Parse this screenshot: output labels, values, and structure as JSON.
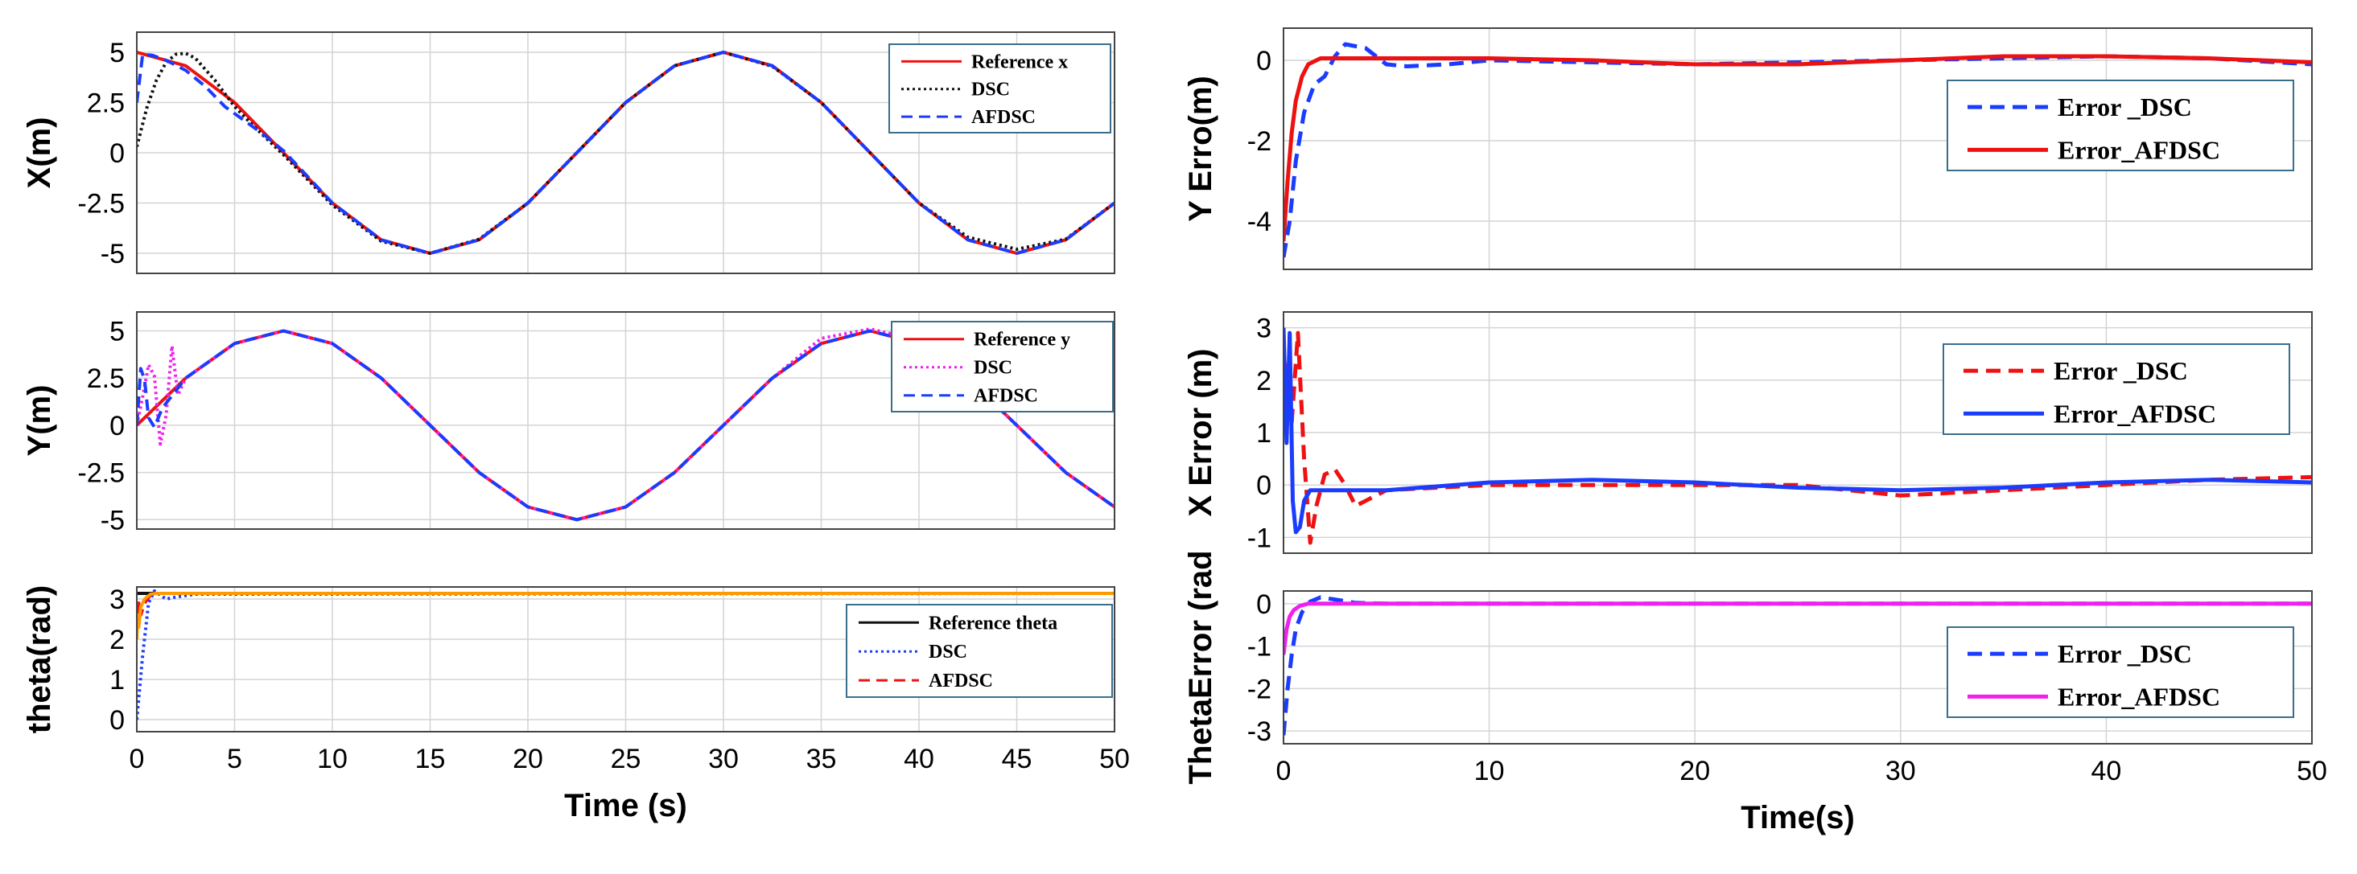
{
  "chart_data": [
    {
      "id": "x_tracking",
      "type": "line",
      "ylabel": "X(m)",
      "xlabel": "",
      "xlim": [
        0,
        50
      ],
      "ylim": [
        -6,
        6
      ],
      "xticks": [
        "0",
        "5",
        "10",
        "15",
        "20",
        "25",
        "30",
        "35",
        "40",
        "45",
        "50"
      ],
      "xtick_labels_shown": false,
      "yticks": [
        5,
        2.5,
        0,
        -2.5,
        -5
      ],
      "ytick_labels": [
        "5",
        "2.5",
        "0",
        "-2.5",
        "-5"
      ],
      "grid": true,
      "legend": "top-right",
      "series": [
        {
          "name": "Reference x",
          "color": "#ee1111",
          "dash": "solid",
          "x": [
            0,
            2.5,
            5,
            7.5,
            10,
            12.5,
            15,
            17.5,
            20,
            22.5,
            25,
            27.5,
            30,
            32.5,
            35,
            37.5,
            40,
            42.5,
            45,
            47.5,
            50
          ],
          "y": [
            5,
            4.33,
            2.5,
            0,
            -2.5,
            -4.33,
            -5,
            -4.33,
            -2.5,
            0,
            2.5,
            4.33,
            5,
            4.33,
            2.5,
            0,
            -2.5,
            -4.33,
            -5,
            -4.33,
            -2.5
          ]
        },
        {
          "name": "DSC",
          "color": "#111111",
          "dash": "dot",
          "x": [
            0,
            0.5,
            1,
            1.5,
            2,
            2.5,
            3,
            4,
            5,
            6,
            7.5,
            10,
            12.5,
            15,
            17.5,
            20,
            22.5,
            25,
            27.5,
            30,
            32.5,
            35,
            37.5,
            40,
            42.5,
            45,
            47.5,
            50
          ],
          "y": [
            0.3,
            2.2,
            3.6,
            4.5,
            4.9,
            4.95,
            4.7,
            3.6,
            2.3,
            1.3,
            -0.1,
            -2.6,
            -4.4,
            -5,
            -4.3,
            -2.5,
            0,
            2.5,
            4.33,
            5,
            4.3,
            2.5,
            0,
            -2.5,
            -4.2,
            -4.8,
            -4.3,
            -2.5
          ]
        },
        {
          "name": "AFDSC",
          "color": "#1a3cff",
          "dash": "dash",
          "x": [
            0,
            0.3,
            0.8,
            1.5,
            2.5,
            3.5,
            4.5,
            5.5,
            6.5,
            7.5,
            10,
            12.5,
            15,
            17.5,
            20,
            22.5,
            25,
            27.5,
            30,
            32.5,
            35,
            37.5,
            40,
            42.5,
            45,
            47.5,
            50
          ],
          "y": [
            2.5,
            4.9,
            4.85,
            4.6,
            4.1,
            3.3,
            2.3,
            1.6,
            0.9,
            0.1,
            -2.5,
            -4.33,
            -5,
            -4.33,
            -2.5,
            0,
            2.5,
            4.33,
            5,
            4.33,
            2.5,
            0,
            -2.5,
            -4.33,
            -5,
            -4.33,
            -2.5
          ]
        }
      ],
      "legend_entries": [
        "Reference x",
        "DSC",
        "AFDSC"
      ]
    },
    {
      "id": "y_tracking",
      "type": "line",
      "ylabel": "Y(m)",
      "xlabel": "",
      "xlim": [
        0,
        50
      ],
      "ylim": [
        -5.5,
        6
      ],
      "xticks": [
        "0",
        "5",
        "10",
        "15",
        "20",
        "25",
        "30",
        "35",
        "40",
        "45",
        "50"
      ],
      "xtick_labels_shown": false,
      "yticks": [
        5,
        2.5,
        0,
        -2.5,
        -5
      ],
      "ytick_labels": [
        "5",
        "2.5",
        "0",
        "-2.5",
        "-5"
      ],
      "grid": true,
      "legend": "top-right",
      "series": [
        {
          "name": "Reference y",
          "color": "#ee1111",
          "dash": "solid",
          "x": [
            0,
            2.5,
            5,
            7.5,
            10,
            12.5,
            15,
            17.5,
            20,
            22.5,
            25,
            27.5,
            30,
            32.5,
            35,
            37.5,
            40,
            42.5,
            45,
            47.5,
            50
          ],
          "y": [
            0,
            2.5,
            4.33,
            5,
            4.33,
            2.5,
            0,
            -2.5,
            -4.33,
            -5,
            -4.33,
            -2.5,
            0,
            2.5,
            4.33,
            5,
            4.33,
            2.5,
            0,
            -2.5,
            -4.33
          ]
        },
        {
          "name": "DSC",
          "color": "#ee22ee",
          "dash": "dot",
          "x": [
            0,
            0.3,
            0.6,
            0.9,
            1.2,
            1.5,
            1.8,
            2.1,
            2.5,
            5,
            7.5,
            10,
            12.5,
            15,
            17.5,
            20,
            22.5,
            25,
            27.5,
            30,
            32.5,
            35,
            37.5,
            40,
            42.5,
            45,
            47.5,
            50
          ],
          "y": [
            0,
            1.5,
            3.2,
            2.6,
            -1.0,
            0.5,
            4.2,
            1.6,
            2.5,
            4.33,
            5,
            4.33,
            2.5,
            0,
            -2.5,
            -4.33,
            -5,
            -4.33,
            -2.5,
            0,
            2.5,
            4.6,
            5.1,
            4.5,
            2.5,
            0,
            -2.5,
            -4.33
          ]
        },
        {
          "name": "AFDSC",
          "color": "#1a3cff",
          "dash": "dash",
          "x": [
            0,
            0.2,
            0.4,
            0.6,
            0.9,
            1.3,
            2.5,
            5,
            7.5,
            10,
            12.5,
            15,
            17.5,
            20,
            22.5,
            25,
            27.5,
            30,
            32.5,
            35,
            37.5,
            40,
            42.5,
            45,
            47.5,
            50
          ],
          "y": [
            0,
            3.0,
            2.4,
            0.4,
            -0.1,
            0.9,
            2.5,
            4.33,
            5,
            4.33,
            2.5,
            0,
            -2.5,
            -4.33,
            -5,
            -4.33,
            -2.5,
            0,
            2.5,
            4.33,
            5,
            4.33,
            2.5,
            0,
            -2.5,
            -4.33
          ]
        }
      ],
      "legend_entries": [
        "Reference y",
        "DSC",
        "AFDSC"
      ]
    },
    {
      "id": "theta_tracking",
      "type": "line",
      "ylabel": "theta(rad)",
      "xlabel": "Time (s)",
      "xlim": [
        0,
        50
      ],
      "ylim": [
        -0.3,
        3.3
      ],
      "xticks": [
        "0",
        "5",
        "10",
        "15",
        "20",
        "25",
        "30",
        "35",
        "40",
        "45",
        "50"
      ],
      "xtick_labels_shown": true,
      "yticks": [
        3,
        2,
        1,
        0
      ],
      "ytick_labels": [
        "3",
        "2",
        "1",
        "0"
      ],
      "grid": true,
      "legend": "right",
      "series": [
        {
          "name": "Reference theta",
          "color": "#111111",
          "dash": "solid",
          "x": [
            0,
            50
          ],
          "y": [
            3.14,
            3.14
          ]
        },
        {
          "name": "DSC",
          "color": "#1a3cff",
          "dash": "dot",
          "x": [
            0,
            0.3,
            0.6,
            0.9,
            1.2,
            1.5,
            2,
            3,
            50
          ],
          "y": [
            0,
            1.6,
            2.9,
            3.2,
            3.1,
            3.0,
            3.05,
            3.12,
            3.14
          ]
        },
        {
          "name": "AFDSC",
          "color": "#ee1111",
          "dash": "dash",
          "x": [
            0,
            0.1,
            0.2,
            0.4,
            0.7,
            1,
            50
          ],
          "y": [
            2.2,
            2.9,
            2.6,
            2.9,
            3.1,
            3.14,
            3.14
          ]
        },
        {
          "name": "",
          "color": "#ff9900",
          "dash": "solid",
          "x": [
            0,
            0.05,
            0.1,
            0.2,
            0.4,
            0.7,
            1,
            50
          ],
          "y": [
            2.0,
            2.6,
            2.3,
            2.8,
            3.0,
            3.12,
            3.14,
            3.14
          ]
        }
      ],
      "legend_entries": [
        "Reference theta",
        "DSC",
        "AFDSC"
      ]
    },
    {
      "id": "y_error",
      "type": "line",
      "ylabel": "Y Erro(m)",
      "xlabel": "",
      "xlim": [
        0,
        50
      ],
      "ylim": [
        -5.2,
        0.8
      ],
      "xticks": [
        "0",
        "10",
        "20",
        "30",
        "40",
        "50"
      ],
      "xtick_labels_shown": false,
      "yticks": [
        0,
        -2,
        -4
      ],
      "ytick_labels": [
        "0",
        "-2",
        "-4"
      ],
      "grid": true,
      "legend": "right",
      "series": [
        {
          "name": "Error _DSC",
          "color": "#1a3cff",
          "dash": "dash",
          "x": [
            0,
            0.3,
            0.6,
            1,
            1.5,
            2,
            2.5,
            3,
            4,
            5,
            6,
            8,
            10,
            15,
            20,
            25,
            30,
            35,
            40,
            45,
            50
          ],
          "y": [
            -4.9,
            -4.0,
            -2.5,
            -1.3,
            -0.6,
            -0.4,
            0.1,
            0.4,
            0.3,
            -0.1,
            -0.15,
            -0.1,
            0.0,
            -0.05,
            -0.1,
            -0.05,
            0.0,
            0.05,
            0.1,
            0.05,
            -0.1
          ]
        },
        {
          "name": "Error_AFDSC",
          "color": "#ee1111",
          "dash": "solid",
          "x": [
            0,
            0.2,
            0.4,
            0.6,
            0.9,
            1.2,
            1.8,
            3,
            5,
            10,
            15,
            20,
            25,
            30,
            35,
            40,
            45,
            50
          ],
          "y": [
            -4.5,
            -3.0,
            -1.8,
            -1.0,
            -0.4,
            -0.1,
            0.05,
            0.05,
            0.05,
            0.05,
            0.0,
            -0.1,
            -0.1,
            0.0,
            0.1,
            0.1,
            0.05,
            -0.05
          ]
        }
      ],
      "legend_entries": [
        "Error _DSC",
        "Error_AFDSC"
      ]
    },
    {
      "id": "x_error",
      "type": "line",
      "ylabel": "X Error (m)",
      "xlabel": "",
      "xlim": [
        0,
        50
      ],
      "ylim": [
        -1.3,
        3.3
      ],
      "xticks": [
        "0",
        "10",
        "20",
        "30",
        "40",
        "50"
      ],
      "xtick_labels_shown": false,
      "yticks": [
        3,
        2,
        1,
        0,
        -1
      ],
      "ytick_labels": [
        "3",
        "2",
        "1",
        "0",
        "-1"
      ],
      "grid": true,
      "legend": "top-right",
      "series": [
        {
          "name": "Error _DSC",
          "color": "#ee1111",
          "dash": "dash",
          "x": [
            0,
            0.4,
            0.7,
            1,
            1.3,
            1.6,
            2,
            2.5,
            3,
            3.5,
            4,
            5,
            10,
            15,
            20,
            25,
            30,
            35,
            40,
            45,
            50
          ],
          "y": [
            2.5,
            1.2,
            2.9,
            0.5,
            -1.1,
            -0.4,
            0.2,
            0.3,
            0.0,
            -0.4,
            -0.3,
            -0.1,
            0.0,
            0.0,
            0.0,
            0.0,
            -0.2,
            -0.1,
            0.0,
            0.1,
            0.15
          ]
        },
        {
          "name": "Error_AFDSC",
          "color": "#1a3cff",
          "dash": "solid",
          "x": [
            0,
            0.15,
            0.3,
            0.45,
            0.6,
            0.8,
            1,
            1.3,
            2,
            5,
            10,
            15,
            20,
            25,
            30,
            35,
            40,
            45,
            50
          ],
          "y": [
            3.0,
            0.8,
            2.9,
            -0.3,
            -0.9,
            -0.8,
            -0.3,
            -0.1,
            -0.1,
            -0.1,
            0.05,
            0.1,
            0.05,
            -0.05,
            -0.1,
            -0.05,
            0.05,
            0.1,
            0.05
          ]
        }
      ],
      "legend_entries": [
        "Error _DSC",
        "Error_AFDSC"
      ]
    },
    {
      "id": "theta_error",
      "type": "line",
      "ylabel": "ThetaError (rad",
      "xlabel": "Time(s)",
      "xlim": [
        0,
        50
      ],
      "ylim": [
        -3.3,
        0.3
      ],
      "xticks": [
        "0",
        "10",
        "20",
        "30",
        "40",
        "50"
      ],
      "xtick_labels_shown": true,
      "yticks": [
        0,
        -1,
        -2,
        -3
      ],
      "ytick_labels": [
        "0",
        "-1",
        "-2",
        "-3"
      ],
      "grid": true,
      "legend": "right",
      "series": [
        {
          "name": "Error _DSC",
          "color": "#1a3cff",
          "dash": "dash",
          "x": [
            0,
            0.2,
            0.4,
            0.6,
            0.9,
            1.3,
            1.8,
            2.5,
            3.5,
            5,
            50
          ],
          "y": [
            -3.1,
            -2.0,
            -1.2,
            -0.6,
            -0.2,
            0.05,
            0.15,
            0.1,
            0.02,
            0.0,
            0.0
          ]
        },
        {
          "name": "Error_AFDSC",
          "color": "#ee22ee",
          "dash": "solid",
          "x": [
            0,
            0.15,
            0.3,
            0.5,
            0.8,
            1.2,
            2,
            50
          ],
          "y": [
            -1.2,
            -0.6,
            -0.3,
            -0.15,
            -0.05,
            0.0,
            0.0,
            0.0
          ]
        }
      ],
      "legend_entries": [
        "Error _DSC",
        "Error_AFDSC"
      ]
    }
  ]
}
